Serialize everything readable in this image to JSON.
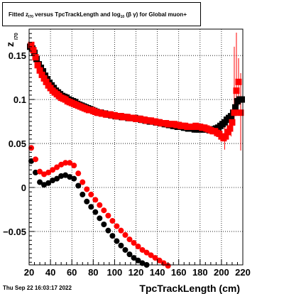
{
  "title": {
    "prefix": "Fitted  z",
    "sub1": "I70",
    "mid": " versus TpcTrackLength and log",
    "sub2": "10",
    "suffix": " (β  γ) for Global muon+"
  },
  "footer": {
    "datestamp": "Thu Sep 22 16:03:17 2022"
  },
  "colors": {
    "series_black": "#000000",
    "series_red": "#ff0000",
    "grid": "#000000"
  },
  "chart_data": {
    "type": "scatter",
    "xlabel": "TpcTrackLength (cm)",
    "ylabel": "z",
    "ylabel_sub": "I70",
    "xlim": [
      20,
      220
    ],
    "ylim": [
      -0.088,
      0.18
    ],
    "xticks": [
      20,
      40,
      60,
      80,
      100,
      120,
      140,
      160,
      180,
      200,
      220
    ],
    "yticks": [
      -0.05,
      0,
      0.05,
      0.1,
      0.15
    ],
    "ytick_labels": [
      "−0.05",
      "0",
      "0.05",
      "0.1",
      "0.15"
    ],
    "grid": true,
    "series": [
      {
        "color": "black",
        "marker": "square",
        "x": [
          21,
          23,
          25,
          27,
          29,
          31,
          33,
          35,
          37,
          39,
          41,
          43,
          45,
          47,
          49,
          51,
          53,
          55,
          57,
          59,
          61,
          63,
          65,
          67,
          69,
          71,
          73,
          75,
          77,
          79,
          81,
          83,
          85,
          87,
          89,
          91,
          93,
          95,
          97,
          99,
          101,
          103,
          105,
          107,
          109,
          111,
          113,
          115,
          117,
          119,
          121,
          123,
          125,
          127,
          129,
          131,
          133,
          135,
          137,
          139,
          141,
          143,
          145,
          147,
          149,
          151,
          153,
          155,
          157,
          159,
          161,
          163,
          165,
          167,
          169,
          171,
          173,
          175,
          177,
          179,
          181,
          183,
          185,
          187,
          189,
          191,
          193,
          195,
          197,
          199,
          201,
          203,
          205,
          207,
          209,
          211,
          213,
          215,
          217,
          219
        ],
        "y": [
          0.16,
          0.158,
          0.153,
          0.146,
          0.14,
          0.136,
          0.132,
          0.127,
          0.123,
          0.119,
          0.116,
          0.113,
          0.11,
          0.108,
          0.106,
          0.104,
          0.103,
          0.102,
          0.1,
          0.099,
          0.098,
          0.097,
          0.095,
          0.094,
          0.093,
          0.092,
          0.091,
          0.09,
          0.089,
          0.088,
          0.087,
          0.086,
          0.085,
          0.085,
          0.084,
          0.084,
          0.083,
          0.083,
          0.082,
          0.082,
          0.081,
          0.081,
          0.081,
          0.08,
          0.08,
          0.08,
          0.079,
          0.079,
          0.079,
          0.079,
          0.078,
          0.078,
          0.077,
          0.077,
          0.076,
          0.076,
          0.075,
          0.075,
          0.075,
          0.074,
          0.074,
          0.073,
          0.073,
          0.072,
          0.072,
          0.071,
          0.071,
          0.07,
          0.07,
          0.069,
          0.069,
          0.069,
          0.068,
          0.068,
          0.067,
          0.067,
          0.067,
          0.066,
          0.066,
          0.066,
          0.066,
          0.066,
          0.066,
          0.066,
          0.065,
          0.066,
          0.066,
          0.067,
          0.068,
          0.07,
          0.072,
          0.074,
          0.077,
          0.079,
          0.081,
          0.085,
          0.091,
          0.098,
          0.1,
          0.1
        ]
      },
      {
        "color": "red",
        "marker": "square",
        "x": [
          22,
          24,
          26,
          28,
          30,
          32,
          34,
          36,
          38,
          40,
          42,
          44,
          46,
          48,
          50,
          52,
          54,
          56,
          58,
          60,
          62,
          64,
          66,
          68,
          70,
          72,
          74,
          76,
          78,
          80,
          82,
          84,
          86,
          88,
          90,
          92,
          94,
          96,
          98,
          100,
          102,
          104,
          106,
          108,
          110,
          112,
          114,
          116,
          118,
          120,
          122,
          124,
          126,
          128,
          130,
          132,
          134,
          136,
          138,
          140,
          142,
          144,
          146,
          148,
          150,
          152,
          154,
          156,
          158,
          160,
          162,
          164,
          166,
          168,
          170,
          172,
          174,
          176,
          178,
          180,
          182,
          184,
          186,
          188,
          190,
          192,
          194,
          196,
          198,
          200,
          202,
          204,
          206,
          208,
          210,
          212,
          214,
          216,
          218
        ],
        "y": [
          0.162,
          0.156,
          0.148,
          0.139,
          0.133,
          0.128,
          0.124,
          0.12,
          0.116,
          0.113,
          0.11,
          0.108,
          0.106,
          0.104,
          0.102,
          0.101,
          0.1,
          0.098,
          0.097,
          0.096,
          0.095,
          0.094,
          0.093,
          0.092,
          0.091,
          0.09,
          0.089,
          0.088,
          0.088,
          0.087,
          0.086,
          0.085,
          0.085,
          0.084,
          0.084,
          0.083,
          0.083,
          0.083,
          0.082,
          0.082,
          0.081,
          0.081,
          0.081,
          0.08,
          0.08,
          0.08,
          0.079,
          0.079,
          0.079,
          0.078,
          0.078,
          0.078,
          0.077,
          0.077,
          0.076,
          0.076,
          0.076,
          0.075,
          0.075,
          0.074,
          0.074,
          0.073,
          0.073,
          0.073,
          0.072,
          0.072,
          0.072,
          0.072,
          0.071,
          0.071,
          0.07,
          0.07,
          0.07,
          0.069,
          0.069,
          0.069,
          0.069,
          0.07,
          0.069,
          0.069,
          0.068,
          0.068,
          0.067,
          0.066,
          0.065,
          0.064,
          0.064,
          0.062,
          0.061,
          0.058,
          0.056,
          0.058,
          0.063,
          0.067,
          0.074,
          0.085,
          0.11,
          0.12,
          0.085
        ]
      },
      {
        "color": "black",
        "marker": "circle",
        "x": [
          22,
          26,
          30,
          34,
          38,
          42,
          46,
          50,
          54,
          58,
          62,
          66,
          70,
          74,
          78,
          82,
          86,
          90,
          94,
          98,
          102,
          106,
          110,
          114,
          118,
          122,
          126,
          130
        ],
        "y": [
          0.03,
          0.017,
          0.006,
          0.003,
          0.005,
          0.008,
          0.01,
          0.013,
          0.014,
          0.012,
          0.01,
          0.002,
          -0.008,
          -0.016,
          -0.022,
          -0.028,
          -0.035,
          -0.042,
          -0.049,
          -0.055,
          -0.061,
          -0.066,
          -0.071,
          -0.076,
          -0.08,
          -0.083,
          -0.086,
          -0.088
        ]
      },
      {
        "color": "red",
        "marker": "circle",
        "x": [
          22,
          26,
          30,
          34,
          38,
          42,
          46,
          50,
          54,
          58,
          62,
          66,
          70,
          74,
          78,
          82,
          86,
          90,
          94,
          98,
          102,
          106,
          110,
          114,
          118,
          122,
          126,
          130,
          134,
          138,
          142,
          146,
          150
        ],
        "y": [
          0.045,
          0.032,
          0.018,
          0.015,
          0.017,
          0.02,
          0.023,
          0.026,
          0.028,
          0.028,
          0.025,
          0.016,
          0.006,
          -0.002,
          -0.008,
          -0.014,
          -0.02,
          -0.026,
          -0.032,
          -0.038,
          -0.044,
          -0.049,
          -0.054,
          -0.059,
          -0.063,
          -0.067,
          -0.071,
          -0.074,
          -0.077,
          -0.08,
          -0.083,
          -0.086,
          -0.089
        ]
      }
    ],
    "error_bars": [
      {
        "x": 203,
        "y_low": 0.043,
        "y_high": 0.072
      },
      {
        "x": 209,
        "y_low": 0.058,
        "y_high": 0.078
      },
      {
        "x": 212,
        "y_low": 0.07,
        "y_high": 0.16
      },
      {
        "x": 214,
        "y_low": 0.086,
        "y_high": 0.176
      },
      {
        "x": 216,
        "y_low": 0.093,
        "y_high": 0.147
      },
      {
        "x": 218,
        "y_low": 0.042,
        "y_high": 0.13
      }
    ]
  }
}
